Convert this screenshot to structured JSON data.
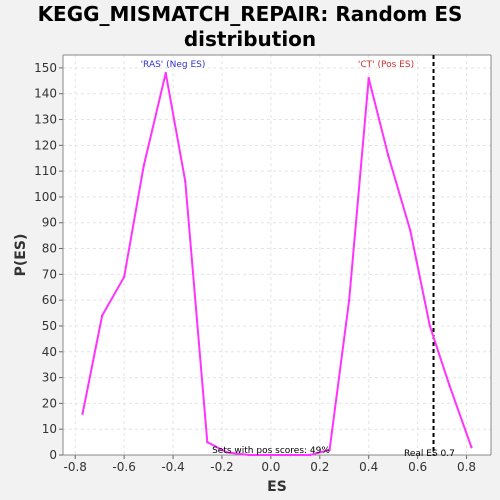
{
  "chart_data": {
    "type": "line",
    "title": "KEGG_MISMATCH_REPAIR: Random ES\ndistribution",
    "xlabel": "ES",
    "ylabel": "P(ES)",
    "xlim": [
      -0.85,
      0.9
    ],
    "ylim": [
      0,
      155
    ],
    "x_ticks": [
      -0.8,
      -0.6,
      -0.4,
      -0.2,
      0.0,
      0.2,
      0.4,
      0.6,
      0.8
    ],
    "x_tick_labels": [
      "-0.8",
      "-0.6",
      "-0.4",
      "-0.2",
      "0.0",
      "0.2",
      "0.4",
      "0.6",
      "0.8"
    ],
    "y_ticks": [
      0,
      10,
      20,
      30,
      40,
      50,
      60,
      70,
      80,
      90,
      100,
      110,
      120,
      130,
      140,
      150
    ],
    "y_tick_labels": [
      "0",
      "10",
      "20",
      "30",
      "40",
      "50",
      "60",
      "70",
      "80",
      "90",
      "100",
      "110",
      "120",
      "130",
      "140",
      "150"
    ],
    "grid": true,
    "series": [
      {
        "color": "#ff33ff",
        "x": [
          -0.77,
          -0.69,
          -0.6,
          -0.52,
          -0.43,
          -0.35,
          -0.26,
          -0.18,
          -0.09,
          0.0,
          0.08,
          0.16,
          0.24,
          0.32,
          0.4,
          0.48,
          0.57,
          0.65,
          0.73,
          0.82
        ],
        "y": [
          16,
          54,
          69,
          112,
          148,
          106,
          5,
          1,
          0,
          0,
          0,
          0,
          2,
          60,
          146,
          116,
          87,
          50,
          27,
          3
        ]
      }
    ],
    "annotations": {
      "neg_label": "'RAS' (Neg ES)",
      "pos_label": "'CT' (Pos ES)",
      "pos_scores": "Sets with pos scores: 49%",
      "real_es": "Real ES 0.7"
    },
    "real_es_value": 0.665,
    "colors": {
      "neg": "#3333cc",
      "pos": "#cc3333",
      "line": "#ff33ff",
      "marker": "#000000"
    }
  }
}
